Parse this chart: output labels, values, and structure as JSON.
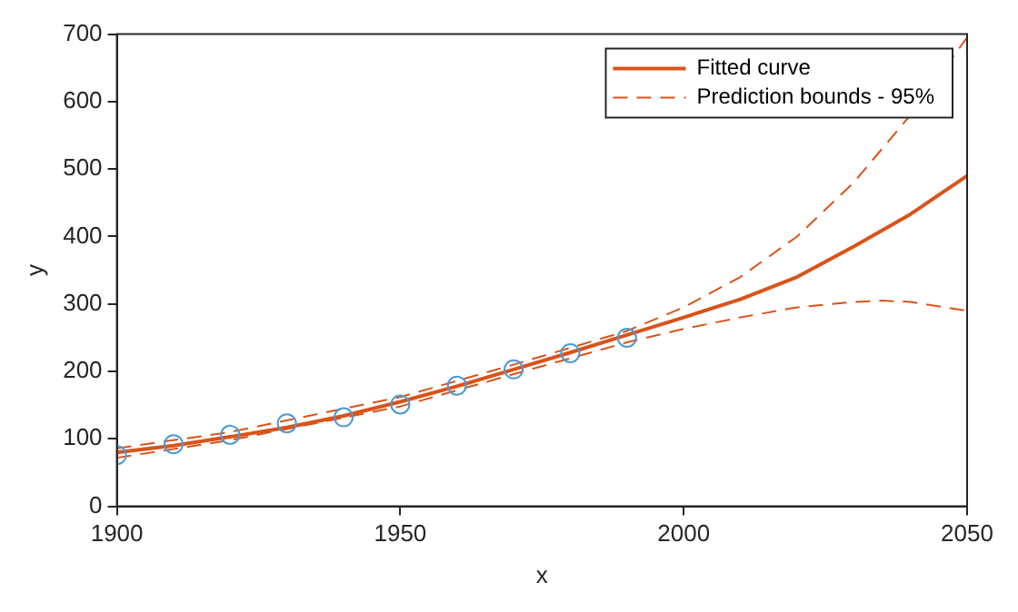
{
  "chart_data": {
    "type": "line",
    "xlabel": "x",
    "ylabel": "y",
    "xlim": [
      1900,
      2050
    ],
    "xticks": [
      1900,
      1950,
      2000,
      2050
    ],
    "ylim": [
      0,
      700
    ],
    "yticks": [
      0,
      100,
      200,
      300,
      400,
      500,
      600,
      700
    ],
    "grid": false,
    "legend": "top right",
    "series": [
      {
        "type": "scatter",
        "color": "#4d9ad6",
        "marker": "circle",
        "x": [
          1900,
          1910,
          1920,
          1930,
          1940,
          1950,
          1960,
          1970,
          1980,
          1990
        ],
        "values": [
          76,
          92,
          106,
          123,
          132,
          151,
          179,
          203,
          227,
          250
        ]
      },
      {
        "name": "Fitted curve",
        "color": "#d95319",
        "line_style": "solid",
        "x": [
          1900,
          1910,
          1920,
          1930,
          1940,
          1950,
          1960,
          1970,
          1980,
          1990,
          2000,
          2010,
          2020,
          2030,
          2040,
          2050
        ],
        "values": [
          80,
          90,
          103,
          117,
          134,
          155,
          178,
          203,
          228,
          254,
          280,
          307,
          340,
          385,
          433,
          490
        ]
      },
      {
        "name": "Prediction bounds - 95%",
        "color": "#d95319",
        "line_style": "dashed",
        "x": [
          1900,
          1920,
          1950,
          1970,
          1990,
          2000,
          2010,
          2020,
          2030,
          2040,
          2050
        ],
        "values": [
          86,
          110,
          162,
          210,
          260,
          295,
          340,
          400,
          480,
          580,
          695
        ]
      },
      {
        "color": "#d95319",
        "line_style": "dashed",
        "x": [
          1900,
          1920,
          1950,
          1970,
          1990,
          2000,
          2010,
          2020,
          2030,
          2035,
          2040,
          2050
        ],
        "values": [
          72,
          98,
          148,
          196,
          243,
          263,
          280,
          295,
          303,
          305,
          303,
          290
        ]
      }
    ]
  }
}
